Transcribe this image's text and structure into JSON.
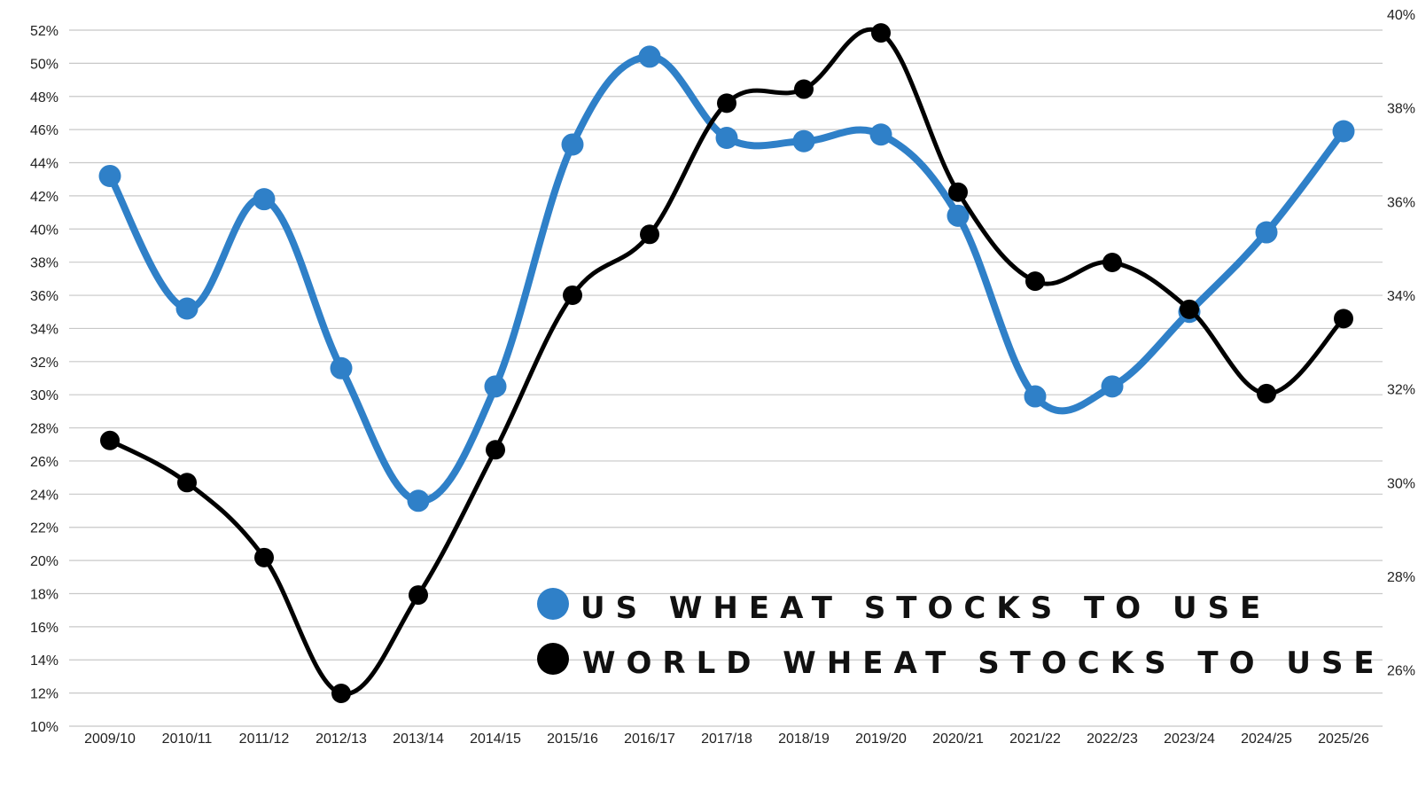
{
  "chart_data": {
    "type": "line",
    "title": "",
    "categories": [
      "2009/10",
      "2010/11",
      "2011/12",
      "2012/13",
      "2013/14",
      "2014/15",
      "2015/16",
      "2016/17",
      "2017/18",
      "2018/19",
      "2019/20",
      "2020/21",
      "2021/22",
      "2022/23",
      "2023/24",
      "2024/25",
      "2025/26"
    ],
    "left_axis": {
      "min": 10,
      "max": 52,
      "step": 2,
      "tick_labels": [
        "10%",
        "12%",
        "14%",
        "16%",
        "18%",
        "20%",
        "22%",
        "24%",
        "26%",
        "28%",
        "30%",
        "32%",
        "34%",
        "36%",
        "38%",
        "40%",
        "42%",
        "44%",
        "46%",
        "48%",
        "50%",
        "52%"
      ]
    },
    "right_axis": {
      "min": 24.8,
      "max": 40,
      "step": 2,
      "tick_labels": [
        "26%",
        "28%",
        "30%",
        "32%",
        "34%",
        "36%",
        "38%",
        "40%"
      ]
    },
    "series": [
      {
        "name": "US WHEAT STOCKS TO USE",
        "axis": "left",
        "color": "#2f80c8",
        "values": [
          43.2,
          35.2,
          41.8,
          31.6,
          23.6,
          30.5,
          45.1,
          50.4,
          45.5,
          45.3,
          45.7,
          40.8,
          29.9,
          30.5,
          35.0,
          39.8,
          45.9
        ]
      },
      {
        "name": "WORLD WHEAT STOCKS TO USE",
        "axis": "right",
        "color": "#000000",
        "values": [
          30.9,
          30.0,
          28.4,
          25.5,
          27.6,
          30.7,
          34.0,
          35.3,
          38.1,
          38.4,
          39.6,
          36.2,
          34.3,
          34.7,
          33.7,
          31.9,
          33.5
        ]
      }
    ],
    "grid": true,
    "legend_position": "center-bottom"
  }
}
